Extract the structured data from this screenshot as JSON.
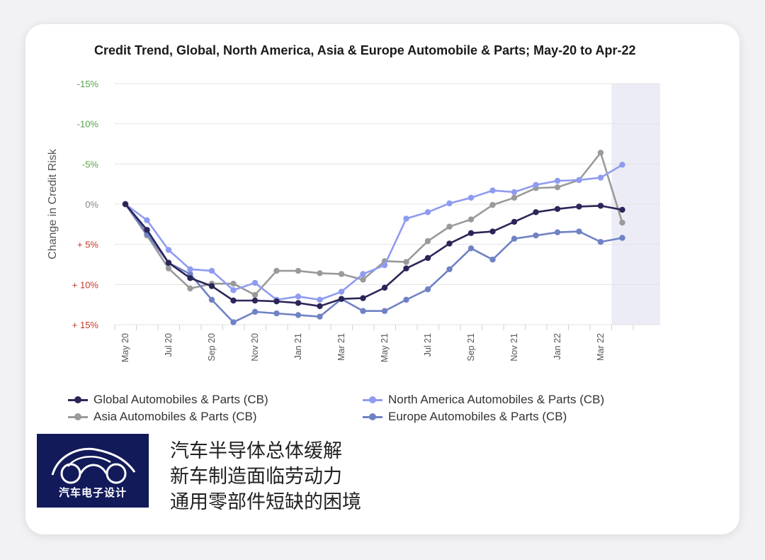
{
  "logo": {
    "text": "汽车电子设计"
  },
  "caption_lines": [
    "汽车半导体总体缓解",
    "新车制造面临劳动力",
    "通用零部件短缺的困境"
  ],
  "colors": {
    "global": "#2b2658",
    "north_america": "#8f9bf0",
    "asia": "#9a9a9a",
    "europe": "#6f82c4",
    "tick_negative": "#5aa04a",
    "tick_positive": "#c0392b",
    "forecast_band": "#ececf6"
  },
  "chart_data": {
    "type": "line",
    "title": "Credit Trend, Global, North America, Asia & Europe Automobile & Parts; May-20 to Apr-22",
    "ylabel": "Change in Credit Risk",
    "xlabel": "",
    "ylim": [
      15,
      -15
    ],
    "yticks": [
      {
        "value": -15,
        "label": "-15%"
      },
      {
        "value": -10,
        "label": "-10%"
      },
      {
        "value": -5,
        "label": "-5%"
      },
      {
        "value": 0,
        "label": "0%"
      },
      {
        "value": 5,
        "label": "+ 5%"
      },
      {
        "value": 10,
        "label": "+ 10%"
      },
      {
        "value": 15,
        "label": "+ 15%"
      }
    ],
    "x": [
      "May 20",
      "Jun 20",
      "Jul 20",
      "Aug 20",
      "Sep 20",
      "Oct 20",
      "Nov 20",
      "Dec 20",
      "Jan 21",
      "Feb 21",
      "Mar 21",
      "Apr 21",
      "May 21",
      "Jun 21",
      "Jul 21",
      "Aug 21",
      "Sep 21",
      "Oct 21",
      "Nov 21",
      "Dec 21",
      "Jan 22",
      "Feb 22",
      "Mar 22",
      "Apr 22"
    ],
    "xtick_labels": [
      "May 20",
      "Jul 20",
      "Sep 20",
      "Nov 20",
      "Jan 21",
      "Mar 21",
      "May 21",
      "Jul 21",
      "Sep 21",
      "Nov 21",
      "Jan 22",
      "Mar 22"
    ],
    "grid": true,
    "legend_position": "bottom",
    "series": [
      {
        "name": "Global Automobiles & Parts (CB)",
        "color_key": "global",
        "values": [
          0,
          3.2,
          7.3,
          9.2,
          10.2,
          12.0,
          12.0,
          12.1,
          12.3,
          12.7,
          11.8,
          11.7,
          10.4,
          8.0,
          6.7,
          4.9,
          3.6,
          3.4,
          2.2,
          1.0,
          0.6,
          0.3,
          0.2,
          0.7
        ]
      },
      {
        "name": "North America Automobiles & Parts (CB)",
        "color_key": "north_america",
        "values": [
          0,
          2.0,
          5.7,
          8.1,
          8.3,
          10.7,
          9.8,
          11.9,
          11.5,
          11.9,
          10.9,
          8.7,
          7.6,
          1.8,
          1.0,
          -0.1,
          -0.8,
          -1.7,
          -1.5,
          -2.4,
          -2.9,
          -3.0,
          -3.3,
          -4.9
        ]
      },
      {
        "name": "Asia Automobiles & Parts (CB)",
        "color_key": "asia",
        "values": [
          0,
          3.9,
          8.0,
          10.5,
          9.9,
          9.9,
          11.3,
          8.3,
          8.3,
          8.6,
          8.7,
          9.4,
          7.1,
          7.2,
          4.6,
          2.8,
          1.9,
          0.1,
          -0.8,
          -2.0,
          -2.1,
          -3.0,
          -6.4,
          2.3
        ]
      },
      {
        "name": "Europe Automobiles & Parts (CB)",
        "color_key": "europe",
        "values": [
          0,
          3.7,
          7.3,
          8.7,
          11.9,
          14.7,
          13.4,
          13.6,
          13.8,
          14.0,
          11.8,
          13.3,
          13.3,
          11.9,
          10.6,
          8.1,
          5.5,
          6.9,
          4.3,
          3.9,
          3.5,
          3.4,
          4.7,
          4.2
        ]
      }
    ]
  }
}
